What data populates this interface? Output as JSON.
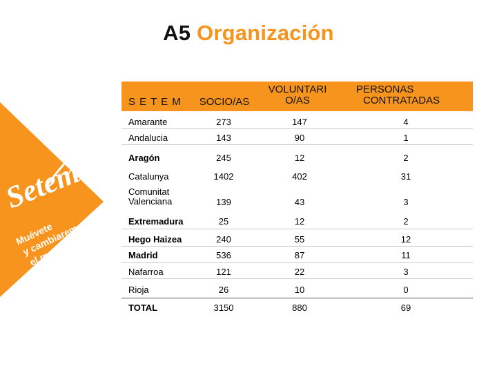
{
  "title": {
    "prefix": "A5",
    "main": "Organización"
  },
  "brand": {
    "logo_text": "Setem",
    "slogan_lines": [
      "Muévete",
      "y cambiaremos",
      "el mundo"
    ]
  },
  "colors": {
    "accent": "#f7941d",
    "text": "#111111"
  },
  "table": {
    "headers": {
      "col0": "S E T E M",
      "col1": "SOCIO/AS",
      "col2_line1": "VOLUNTARI",
      "col2_line2": "O/AS",
      "col3_line1": "PERSONAS",
      "col3_line2": "CONTRATADAS"
    },
    "rows": [
      {
        "name": "Amarante",
        "name2": "",
        "socios": "273",
        "voluntarios": "147",
        "contratadas": "4"
      },
      {
        "name": "Andalucia",
        "name2": "",
        "socios": "143",
        "voluntarios": "90",
        "contratadas": "1"
      },
      {
        "name": "Aragón",
        "name2": "",
        "socios": "245",
        "voluntarios": "12",
        "contratadas": "2"
      },
      {
        "name": "Catalunya",
        "name2": "",
        "socios": "1402",
        "voluntarios": "402",
        "contratadas": "31"
      },
      {
        "name": "Comunitat",
        "name2": "Valenciana",
        "socios": "139",
        "voluntarios": "43",
        "contratadas": "3"
      },
      {
        "name": "Extremadura",
        "name2": "",
        "socios": "25",
        "voluntarios": "12",
        "contratadas": "2"
      },
      {
        "name": "Hego Haizea",
        "name2": "",
        "socios": "240",
        "voluntarios": "55",
        "contratadas": "12"
      },
      {
        "name": "Madrid",
        "name2": "",
        "socios": "536",
        "voluntarios": "87",
        "contratadas": "11"
      },
      {
        "name": "Nafarroa",
        "name2": "",
        "socios": "121",
        "voluntarios": "22",
        "contratadas": "3"
      },
      {
        "name": "Rioja",
        "name2": "",
        "socios": "26",
        "voluntarios": "10",
        "contratadas": "0"
      }
    ],
    "total": {
      "name": "TOTAL",
      "socios": "3150",
      "voluntarios": "880",
      "contratadas": "69"
    }
  }
}
